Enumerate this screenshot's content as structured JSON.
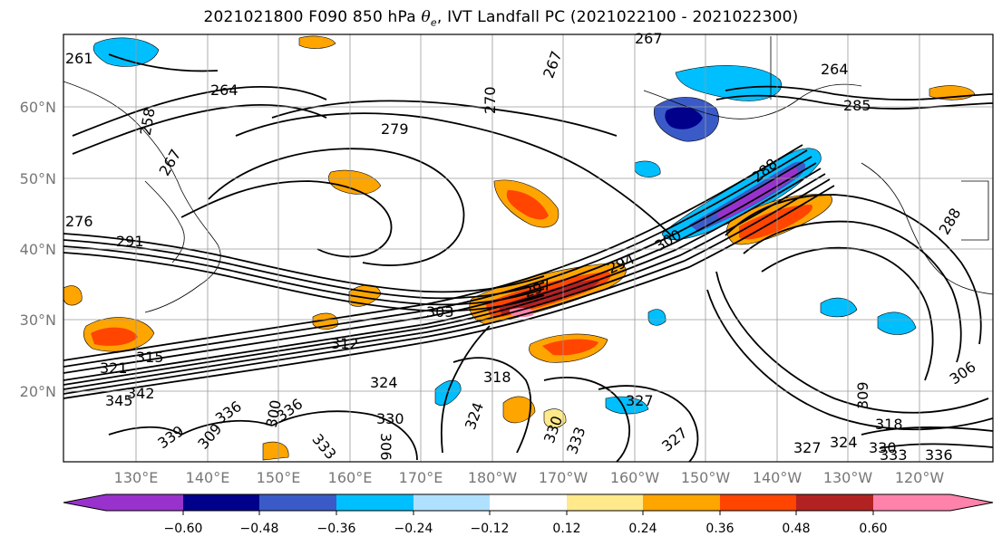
{
  "title": {
    "prefix": "2021021800 F090 850 hPa ",
    "theta_symbol": "θ",
    "theta_sub": "e",
    "suffix": ", IVT Landfall PC (2021022100 - 2021022300)"
  },
  "map": {
    "lat_labels": [
      "60°N",
      "50°N",
      "40°N",
      "30°N",
      "20°N"
    ],
    "lon_labels": [
      "130°E",
      "140°E",
      "150°E",
      "160°E",
      "170°E",
      "180°W",
      "170°W",
      "160°W",
      "150°W",
      "140°W",
      "130°W",
      "120°W"
    ],
    "contour_labels": [
      "261",
      "264",
      "267",
      "270",
      "258",
      "267",
      "279",
      "276",
      "267",
      "264",
      "285",
      "288",
      "288",
      "297",
      "294",
      "291",
      "300",
      "303",
      "309",
      "306",
      "318",
      "312",
      "315",
      "321",
      "324",
      "327",
      "330",
      "333",
      "336",
      "339",
      "342",
      "345",
      "324",
      "327",
      "330",
      "333",
      "336",
      "300",
      "309",
      "306",
      "318",
      "324",
      "327",
      "330",
      "333",
      "336"
    ]
  },
  "colorbar": {
    "ticks": [
      "−0.60",
      "−0.48",
      "−0.36",
      "−0.24",
      "−0.12",
      "0.12",
      "0.24",
      "0.36",
      "0.48",
      "0.60"
    ],
    "colors": [
      "#9932CC",
      "#00008B",
      "#3A5BC7",
      "#00BFFF",
      "#B0E0FF",
      "#FFFFFF",
      "#FFE98A",
      "#FFA500",
      "#FF4500",
      "#B22222",
      "#FF82AB"
    ],
    "under_color": "#9932CC",
    "over_color": "#FF82AB"
  }
}
